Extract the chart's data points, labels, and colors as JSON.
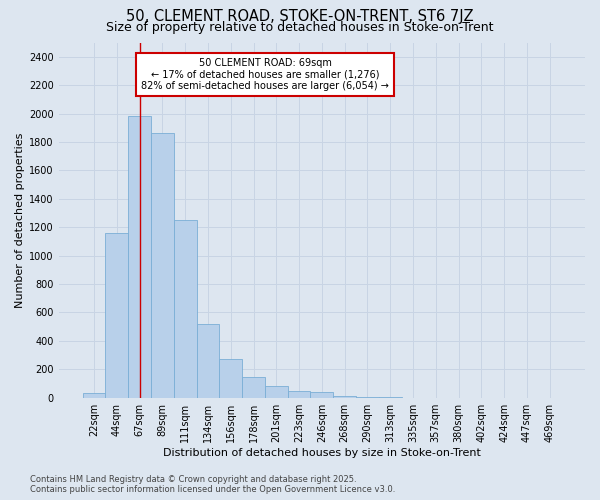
{
  "title": "50, CLEMENT ROAD, STOKE-ON-TRENT, ST6 7JZ",
  "subtitle": "Size of property relative to detached houses in Stoke-on-Trent",
  "xlabel": "Distribution of detached houses by size in Stoke-on-Trent",
  "ylabel": "Number of detached properties",
  "categories": [
    "22sqm",
    "44sqm",
    "67sqm",
    "89sqm",
    "111sqm",
    "134sqm",
    "156sqm",
    "178sqm",
    "201sqm",
    "223sqm",
    "246sqm",
    "268sqm",
    "290sqm",
    "313sqm",
    "335sqm",
    "357sqm",
    "380sqm",
    "402sqm",
    "424sqm",
    "447sqm",
    "469sqm"
  ],
  "values": [
    30,
    1160,
    1980,
    1860,
    1250,
    520,
    270,
    145,
    85,
    45,
    40,
    15,
    5,
    2,
    1,
    1,
    0,
    0,
    0,
    0,
    0
  ],
  "bar_color": "#b8d0ea",
  "bar_edge_color": "#7aaed6",
  "grid_color": "#c8d4e4",
  "background_color": "#dde6f0",
  "annotation_line1": "50 CLEMENT ROAD: 69sqm",
  "annotation_line2": "← 17% of detached houses are smaller (1,276)",
  "annotation_line3": "82% of semi-detached houses are larger (6,054) →",
  "annotation_box_color": "white",
  "annotation_box_edge_color": "#cc0000",
  "vline_x_idx": 2,
  "vline_color": "#cc0000",
  "ylim": [
    0,
    2500
  ],
  "yticks": [
    0,
    200,
    400,
    600,
    800,
    1000,
    1200,
    1400,
    1600,
    1800,
    2000,
    2200,
    2400
  ],
  "footer": "Contains HM Land Registry data © Crown copyright and database right 2025.\nContains public sector information licensed under the Open Government Licence v3.0.",
  "title_fontsize": 10.5,
  "subtitle_fontsize": 9,
  "axis_label_fontsize": 8,
  "tick_fontsize": 7,
  "annotation_fontsize": 7,
  "footer_fontsize": 6
}
